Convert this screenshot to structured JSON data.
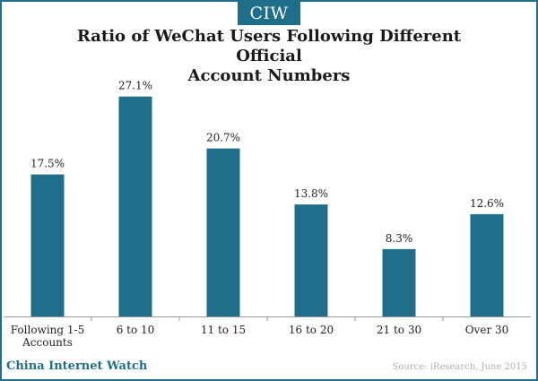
{
  "logo": "CIW",
  "brand": "China Internet Watch",
  "source": "Source: iResearch, June 2015",
  "colors": {
    "bar": "#1f6f8b",
    "frame": "#1f6f8b",
    "axis": "#999999"
  },
  "chart_data": {
    "type": "bar",
    "title_lines": [
      "Ratio of WeChat Users Following Different Official",
      "Account Numbers"
    ],
    "categories": [
      [
        "Following 1-5",
        "Accounts"
      ],
      [
        "6 to 10"
      ],
      [
        "11 to 15"
      ],
      [
        "16 to 20"
      ],
      [
        "21 to 30"
      ],
      [
        "Over 30"
      ]
    ],
    "values": [
      17.5,
      27.1,
      20.7,
      13.8,
      8.3,
      12.6
    ],
    "value_labels": [
      "17.5%",
      "27.1%",
      "20.7%",
      "13.8%",
      "8.3%",
      "12.6%"
    ],
    "xlabel": "",
    "ylabel": "",
    "ylim": [
      0,
      28.5
    ],
    "grid": false,
    "legend": "none"
  }
}
